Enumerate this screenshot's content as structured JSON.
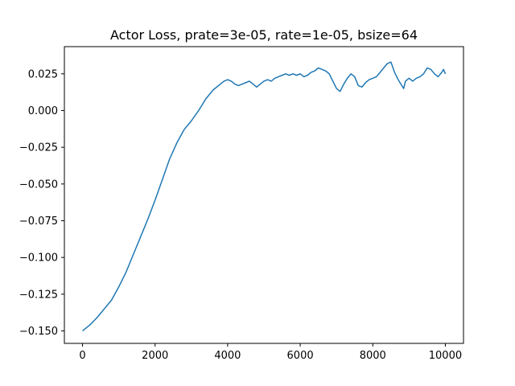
{
  "chart_data": {
    "type": "line",
    "title": "Actor Loss, prate=3e-05, rate=1e-05, bsize=64",
    "xlabel": "",
    "ylabel": "",
    "xlim": [
      -500,
      10500
    ],
    "ylim": [
      -0.1585,
      0.0435
    ],
    "grid": false,
    "x_ticks": [
      0,
      2000,
      4000,
      6000,
      8000,
      10000
    ],
    "x_tick_labels": [
      "0",
      "2000",
      "4000",
      "6000",
      "8000",
      "10000"
    ],
    "y_ticks": [
      -0.15,
      -0.125,
      -0.1,
      -0.075,
      -0.05,
      -0.025,
      0.0,
      0.025
    ],
    "y_tick_labels": [
      "−0.150",
      "−0.125",
      "−0.100",
      "−0.075",
      "−0.050",
      "−0.025",
      "0.000",
      "0.025"
    ],
    "series": [
      {
        "color": "#1f77b4",
        "x": [
          0,
          200,
          400,
          600,
          800,
          1000,
          1200,
          1400,
          1600,
          1800,
          2000,
          2200,
          2400,
          2600,
          2800,
          3000,
          3200,
          3400,
          3600,
          3800,
          3900,
          4000,
          4100,
          4200,
          4300,
          4400,
          4500,
          4600,
          4700,
          4800,
          4900,
          5000,
          5100,
          5200,
          5300,
          5400,
          5500,
          5600,
          5700,
          5800,
          5900,
          6000,
          6100,
          6200,
          6300,
          6400,
          6500,
          6600,
          6700,
          6800,
          6900,
          7000,
          7100,
          7200,
          7300,
          7400,
          7500,
          7600,
          7700,
          7800,
          7900,
          8000,
          8100,
          8200,
          8300,
          8400,
          8500,
          8600,
          8700,
          8800,
          8850,
          8900,
          9000,
          9100,
          9200,
          9300,
          9400,
          9500,
          9600,
          9700,
          9800,
          9900,
          9950,
          10000
        ],
        "values": [
          -0.15,
          -0.146,
          -0.141,
          -0.135,
          -0.129,
          -0.12,
          -0.11,
          -0.098,
          -0.086,
          -0.074,
          -0.061,
          -0.047,
          -0.033,
          -0.022,
          -0.013,
          -0.007,
          0.0,
          0.008,
          0.014,
          0.018,
          0.02,
          0.021,
          0.02,
          0.018,
          0.017,
          0.018,
          0.019,
          0.02,
          0.018,
          0.016,
          0.018,
          0.02,
          0.021,
          0.02,
          0.022,
          0.023,
          0.024,
          0.025,
          0.024,
          0.025,
          0.024,
          0.025,
          0.023,
          0.024,
          0.026,
          0.027,
          0.029,
          0.028,
          0.027,
          0.025,
          0.02,
          0.015,
          0.013,
          0.018,
          0.022,
          0.025,
          0.023,
          0.017,
          0.016,
          0.019,
          0.021,
          0.022,
          0.023,
          0.026,
          0.029,
          0.032,
          0.033,
          0.026,
          0.021,
          0.017,
          0.015,
          0.02,
          0.022,
          0.02,
          0.022,
          0.023,
          0.025,
          0.029,
          0.028,
          0.025,
          0.023,
          0.026,
          0.028,
          0.025
        ]
      }
    ]
  }
}
